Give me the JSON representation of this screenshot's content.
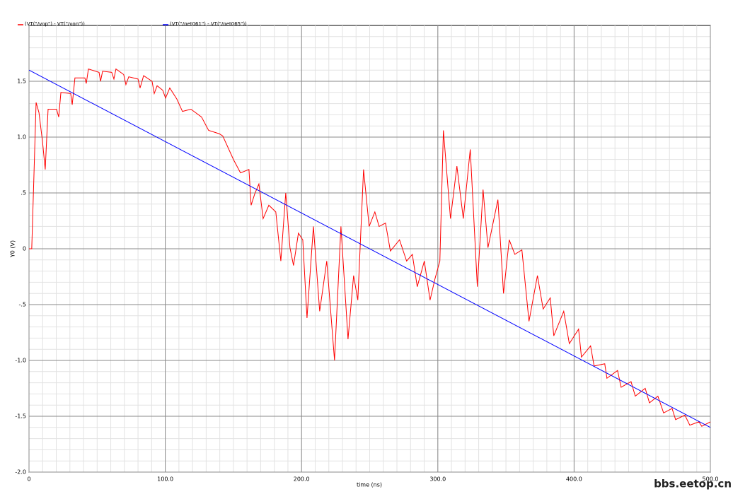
{
  "chart_data": {
    "type": "line",
    "xlabel": "time (ns)",
    "ylabel": "Y0 (V)",
    "watermark": "bbs.eetop.cn",
    "xlim": [
      0,
      500
    ],
    "xticks": [
      0,
      {
        "value": 100,
        "label": "100.0"
      },
      {
        "value": 200,
        "label": "200.0"
      },
      {
        "value": 300,
        "label": "300.0"
      },
      {
        "value": 400,
        "label": "400.0"
      },
      {
        "value": 500,
        "label": "500.0"
      }
    ],
    "ylim": [
      -2,
      2
    ],
    "yticks": [
      {
        "value": -2,
        "label": "-2.0"
      },
      {
        "value": -1.5,
        "label": "-1.5"
      },
      {
        "value": -1,
        "label": "-1.0"
      },
      {
        "value": -0.5,
        "label": "-.5"
      },
      0,
      {
        "value": 0.5,
        "label": ".5"
      },
      {
        "value": 1,
        "label": "1.0"
      },
      {
        "value": 1.5,
        "label": "1.5"
      }
    ],
    "grid": true,
    "series": [
      {
        "name": "(VT(\"/vop\") - VT(\"/von\"))",
        "color": "#ff0000",
        "x": [
          0,
          2,
          3.6,
          5.2,
          7.3,
          9.9,
          11.9,
          14,
          20.2,
          21.8,
          23.4,
          30.6,
          31.7,
          33.7,
          41,
          42,
          43.6,
          51.4,
          52.5,
          54,
          60.7,
          62.3,
          63.8,
          69.5,
          71.1,
          73.2,
          80,
          81.5,
          84.1,
          90.3,
          91.9,
          94,
          98.1,
          100.2,
          103.3,
          108.5,
          112.6,
          118.8,
          126.6,
          131.8,
          139.6,
          142.2,
          150,
          155.2,
          161.4,
          163,
          165.6,
          168.7,
          171.8,
          176,
          181.1,
          184.8,
          188.4,
          191.5,
          194.1,
          197.7,
          200.9,
          204,
          208.7,
          213.3,
          218.5,
          224.2,
          228.9,
          234.1,
          238.2,
          241.3,
          245.5,
          249.6,
          253.8,
          256.9,
          261.6,
          265.2,
          271.9,
          277.1,
          281.3,
          284.9,
          290.1,
          294.3,
          297.9,
          301.5,
          304.1,
          309.3,
          314,
          318.7,
          323.8,
          329,
          333.2,
          336.8,
          344.1,
          348.2,
          352.4,
          356.5,
          361.7,
          366.9,
          373.1,
          377.3,
          382.5,
          385.1,
          392.4,
          396.5,
          403.3,
          405.4,
          412.1,
          414.7,
          422.5,
          424.1,
          431.9,
          434.5,
          441.8,
          444.9,
          452.2,
          455.3,
          461.5,
          465.7,
          471.9,
          474.5,
          481.3,
          484.9,
          491.6,
          493.7,
          500
        ],
        "values": [
          0,
          0,
          0.65,
          1.31,
          1.22,
          0.96,
          0.71,
          1.25,
          1.25,
          1.18,
          1.4,
          1.39,
          1.29,
          1.53,
          1.53,
          1.48,
          1.61,
          1.58,
          1.5,
          1.59,
          1.58,
          1.52,
          1.61,
          1.56,
          1.47,
          1.54,
          1.52,
          1.44,
          1.55,
          1.5,
          1.39,
          1.46,
          1.42,
          1.35,
          1.44,
          1.34,
          1.23,
          1.25,
          1.18,
          1.06,
          1.03,
          1.01,
          0.8,
          0.68,
          0.71,
          0.39,
          0.49,
          0.58,
          0.27,
          0.39,
          0.33,
          -0.11,
          0.5,
          0.01,
          -0.15,
          0.14,
          0.08,
          -0.62,
          0.2,
          -0.56,
          -0.11,
          -1,
          0.2,
          -0.81,
          -0.24,
          -0.46,
          0.71,
          0.2,
          0.33,
          0.2,
          0.23,
          -0.02,
          0.08,
          -0.11,
          -0.05,
          -0.34,
          -0.11,
          -0.46,
          -0.27,
          -0.11,
          1.06,
          0.27,
          0.74,
          0.27,
          0.89,
          -0.34,
          0.53,
          0.01,
          0.44,
          -0.4,
          0.08,
          -0.05,
          -0.01,
          -0.65,
          -0.24,
          -0.54,
          -0.44,
          -0.78,
          -0.56,
          -0.85,
          -0.72,
          -0.97,
          -0.87,
          -1.05,
          -1.03,
          -1.16,
          -1.09,
          -1.24,
          -1.19,
          -1.32,
          -1.25,
          -1.38,
          -1.32,
          -1.47,
          -1.43,
          -1.53,
          -1.49,
          -1.58,
          -1.55,
          -1.59,
          -1.55
        ]
      },
      {
        "name": "(VT(\"/net061\") - VT(\"/net065\"))",
        "color": "#0000ff",
        "x": [
          0,
          500
        ],
        "values": [
          1.6,
          -1.6
        ]
      }
    ]
  }
}
